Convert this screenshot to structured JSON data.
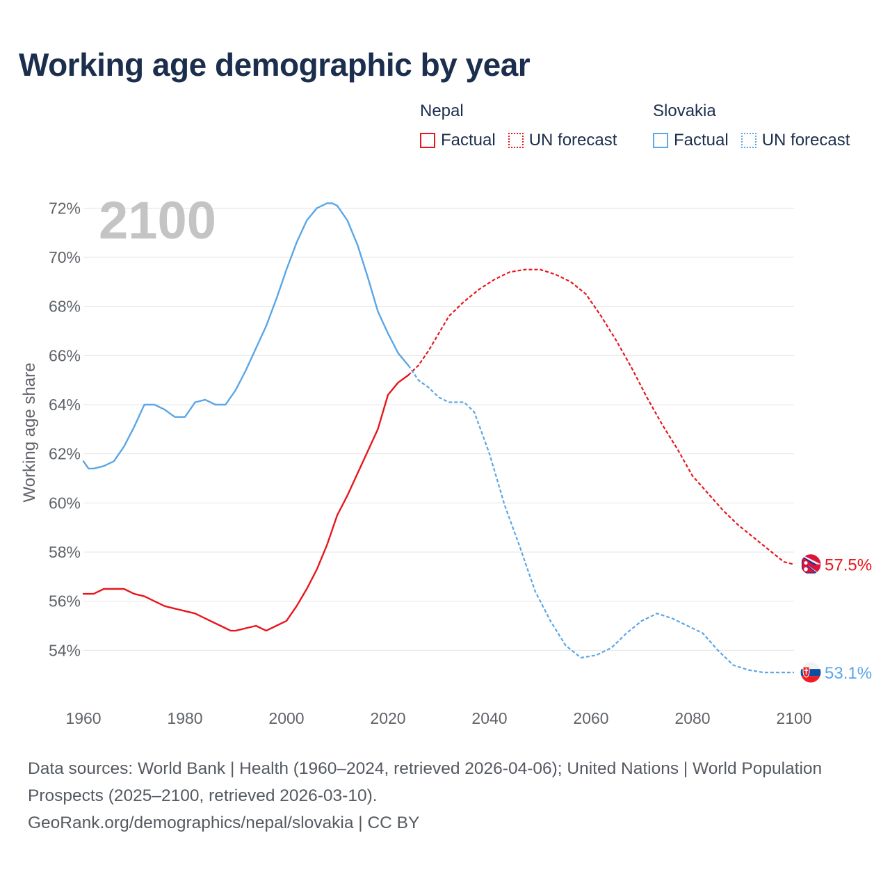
{
  "title": "Working age demographic by year",
  "legend": {
    "groups": [
      {
        "name": "Nepal",
        "color": "#e8161b",
        "factual_label": "Factual",
        "forecast_label": "UN forecast"
      },
      {
        "name": "Slovakia",
        "color": "#5aa6e6",
        "factual_label": "Factual",
        "forecast_label": "UN forecast"
      }
    ]
  },
  "sources": {
    "line1": "Data sources: World Bank | Health (1960–2024, retrieved 2026-04-06); United Nations | World Population Prospects (2025–2100, retrieved 2026-03-10).",
    "line2": "GeoRank.org/demographics/nepal/slovakia | CC BY"
  },
  "chart_data": {
    "type": "line",
    "year_label": "2100",
    "ylabel": "Working age share",
    "xlim": [
      1960,
      2100
    ],
    "ylim": [
      52,
      73
    ],
    "x_ticks": [
      "1960",
      "1980",
      "2000",
      "2020",
      "2040",
      "2060",
      "2080",
      "2100"
    ],
    "y_ticks": [
      "54%",
      "56%",
      "58%",
      "60%",
      "62%",
      "64%",
      "66%",
      "68%",
      "70%",
      "72%"
    ],
    "grid": true,
    "series": [
      {
        "name": "Nepal",
        "color": "#e8161b",
        "end_label": "57.5%",
        "factual_years": [
          1960,
          1962,
          1964,
          1966,
          1968,
          1970,
          1972,
          1974,
          1976,
          1978,
          1980,
          1982,
          1984,
          1986,
          1988,
          1989,
          1990,
          1992,
          1994,
          1996,
          1998,
          2000,
          2002,
          2004,
          2006,
          2008,
          2010,
          2012,
          2014,
          2016,
          2018,
          2020,
          2022,
          2024
        ],
        "factual_values": [
          56.3,
          56.3,
          56.5,
          56.5,
          56.5,
          56.3,
          56.2,
          56.0,
          55.8,
          55.7,
          55.6,
          55.5,
          55.3,
          55.1,
          54.9,
          54.8,
          54.8,
          54.9,
          55.0,
          54.8,
          55.0,
          55.2,
          55.8,
          56.5,
          57.3,
          58.3,
          59.5,
          60.3,
          61.2,
          62.1,
          63.0,
          64.4,
          64.9,
          65.2
        ],
        "forecast_years": [
          2024,
          2026,
          2028,
          2030,
          2032,
          2035,
          2038,
          2041,
          2044,
          2047,
          2050,
          2053,
          2056,
          2059,
          2062,
          2065,
          2068,
          2071,
          2074,
          2077,
          2080,
          2083,
          2086,
          2089,
          2092,
          2095,
          2098,
          2100
        ],
        "forecast_values": [
          65.2,
          65.6,
          66.2,
          66.9,
          67.6,
          68.2,
          68.7,
          69.1,
          69.4,
          69.5,
          69.5,
          69.3,
          69.0,
          68.5,
          67.6,
          66.6,
          65.5,
          64.3,
          63.2,
          62.2,
          61.1,
          60.4,
          59.7,
          59.1,
          58.6,
          58.1,
          57.6,
          57.5
        ]
      },
      {
        "name": "Slovakia",
        "color": "#5aa6e6",
        "end_label": "53.1%",
        "factual_years": [
          1960,
          1961,
          1962,
          1964,
          1966,
          1968,
          1970,
          1972,
          1974,
          1976,
          1978,
          1980,
          1982,
          1984,
          1986,
          1988,
          1990,
          1992,
          1994,
          1996,
          1998,
          2000,
          2002,
          2004,
          2006,
          2008,
          2009,
          2010,
          2012,
          2014,
          2016,
          2018,
          2020,
          2022,
          2024
        ],
        "factual_values": [
          61.7,
          61.4,
          61.4,
          61.5,
          61.7,
          62.3,
          63.1,
          64.0,
          64.0,
          63.8,
          63.5,
          63.5,
          64.1,
          64.2,
          64.0,
          64.0,
          64.6,
          65.4,
          66.3,
          67.2,
          68.3,
          69.5,
          70.6,
          71.5,
          72.0,
          72.2,
          72.2,
          72.1,
          71.5,
          70.5,
          69.2,
          67.8,
          66.9,
          66.1,
          65.6
        ],
        "forecast_years": [
          2024,
          2026,
          2028,
          2030,
          2032,
          2035,
          2037,
          2040,
          2043,
          2046,
          2049,
          2052,
          2055,
          2058,
          2061,
          2064,
          2067,
          2070,
          2073,
          2076,
          2079,
          2082,
          2085,
          2088,
          2091,
          2094,
          2097,
          2100
        ],
        "forecast_values": [
          65.6,
          65.0,
          64.7,
          64.3,
          64.1,
          64.1,
          63.7,
          62.0,
          59.9,
          58.2,
          56.4,
          55.2,
          54.2,
          53.7,
          53.8,
          54.1,
          54.7,
          55.2,
          55.5,
          55.3,
          55.0,
          54.7,
          54.0,
          53.4,
          53.2,
          53.1,
          53.1,
          53.1
        ]
      }
    ]
  }
}
